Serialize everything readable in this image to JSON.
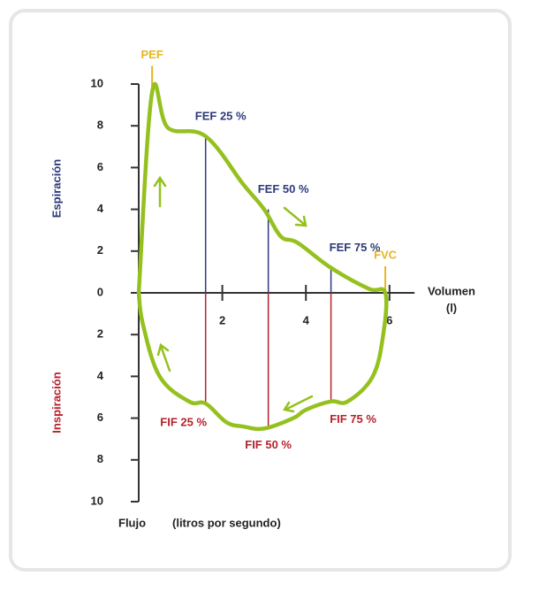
{
  "chart_data": {
    "type": "line",
    "x": [
      0,
      0.32,
      0.7,
      1.6,
      2.5,
      3.0,
      3.4,
      3.8,
      4.6,
      5.5,
      5.9,
      5.85,
      5.6,
      5.0,
      4.6,
      4.0,
      3.7,
      3.0,
      2.5,
      2.1,
      1.6,
      1.2,
      0.5,
      0.1,
      0
    ],
    "values": [
      0,
      9.6,
      7.9,
      7.5,
      5.2,
      4.0,
      2.7,
      2.4,
      1.2,
      0.2,
      0,
      -2,
      -4,
      -5.2,
      -5.2,
      -5.6,
      -6.0,
      -6.5,
      -6.4,
      -6.2,
      -5.3,
      -5.2,
      -4.0,
      -1.5,
      0
    ],
    "color": "#95c11f",
    "xlim": [
      0,
      6.6
    ],
    "xticks": [
      2,
      4,
      6
    ],
    "ylim": [
      -10,
      10
    ],
    "yticks": [
      {
        "value": -10,
        "label": "10"
      },
      {
        "value": -8,
        "label": "8"
      },
      {
        "value": -6,
        "label": "6"
      },
      {
        "value": -4,
        "label": "4"
      },
      {
        "value": -2,
        "label": "2"
      },
      0,
      2,
      4,
      6,
      8,
      10
    ],
    "xlabel": [
      "Volumen",
      "(l)"
    ],
    "ylabel_top": "Espiración",
    "ylabel_bottom": "Inspiración",
    "footer": [
      "Flujo",
      "(litros por segundo)"
    ],
    "markers": [
      {
        "text": "PEF",
        "x": 0.32,
        "y": 9.6,
        "color": "#e8b520"
      },
      {
        "text": "FEF 25 %",
        "x": 1.6,
        "y": 7.5,
        "color": "#2e3a7a"
      },
      {
        "text": "FEF 50 %",
        "x": 3.1,
        "y": 4.0,
        "color": "#2e3a7a"
      },
      {
        "text": "FEF 75 %",
        "x": 4.6,
        "y": 1.2,
        "color": "#2e3a7a"
      },
      {
        "text": "FVC",
        "x": 5.9,
        "y": 0,
        "color": "#e8b520"
      },
      {
        "text": "FIF 25 %",
        "x": 1.6,
        "y": -5.3,
        "color": "#b5222b"
      },
      {
        "text": "FIF 50 %",
        "x": 3.1,
        "y": -6.5,
        "color": "#b5222b"
      },
      {
        "text": "FIF 75 %",
        "x": 4.6,
        "y": -5.2,
        "color": "#b5222b"
      }
    ]
  }
}
